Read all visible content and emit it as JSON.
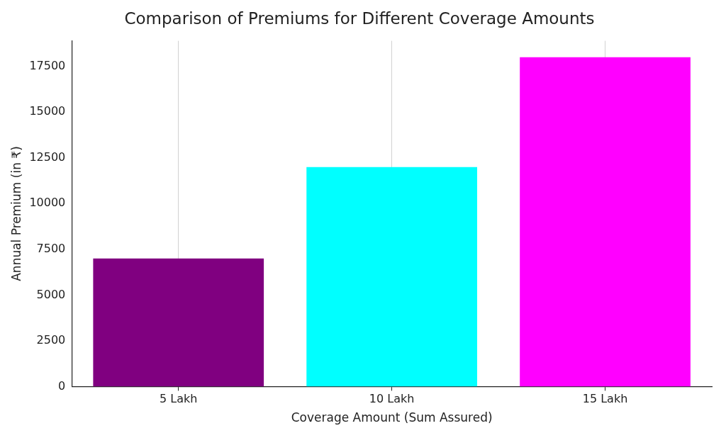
{
  "chart_data": {
    "type": "bar",
    "title": "Comparison of Premiums for Different Coverage Amounts",
    "x_label": "Coverage Amount (Sum Assured)",
    "y_label": "Annual Premium (in ₹)",
    "categories": [
      "5 Lakh",
      "10 Lakh",
      "15 Lakh"
    ],
    "values": [
      7000,
      12000,
      18000
    ],
    "colors": [
      "#800080",
      "#00ffff",
      "#ff00ff"
    ],
    "ylim": [
      0,
      18900
    ],
    "yticks": [
      0,
      2500,
      5000,
      7500,
      10000,
      12500,
      15000,
      17500
    ],
    "grid": true
  }
}
